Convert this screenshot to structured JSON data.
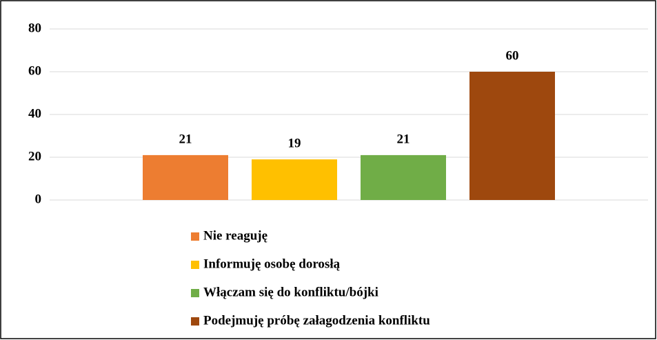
{
  "chart_data": {
    "type": "bar",
    "categories": [
      null
    ],
    "series": [
      {
        "name": "Nie reaguję",
        "color": "#ed7d31",
        "values": [
          21
        ]
      },
      {
        "name": "Informuję osobę dorosłą",
        "color": "#ffc000",
        "values": [
          19
        ]
      },
      {
        "name": "Włączam się do konfliktu/bójki",
        "color": "#70ad47",
        "values": [
          21
        ]
      },
      {
        "name": "Podejmuję próbę załagodzenia konfliktu",
        "color": "#9e480e",
        "values": [
          60
        ]
      }
    ],
    "ylim": [
      0,
      80
    ],
    "yticks": [
      0,
      20,
      40,
      60,
      80
    ],
    "grid": true,
    "legend": "bottom"
  }
}
